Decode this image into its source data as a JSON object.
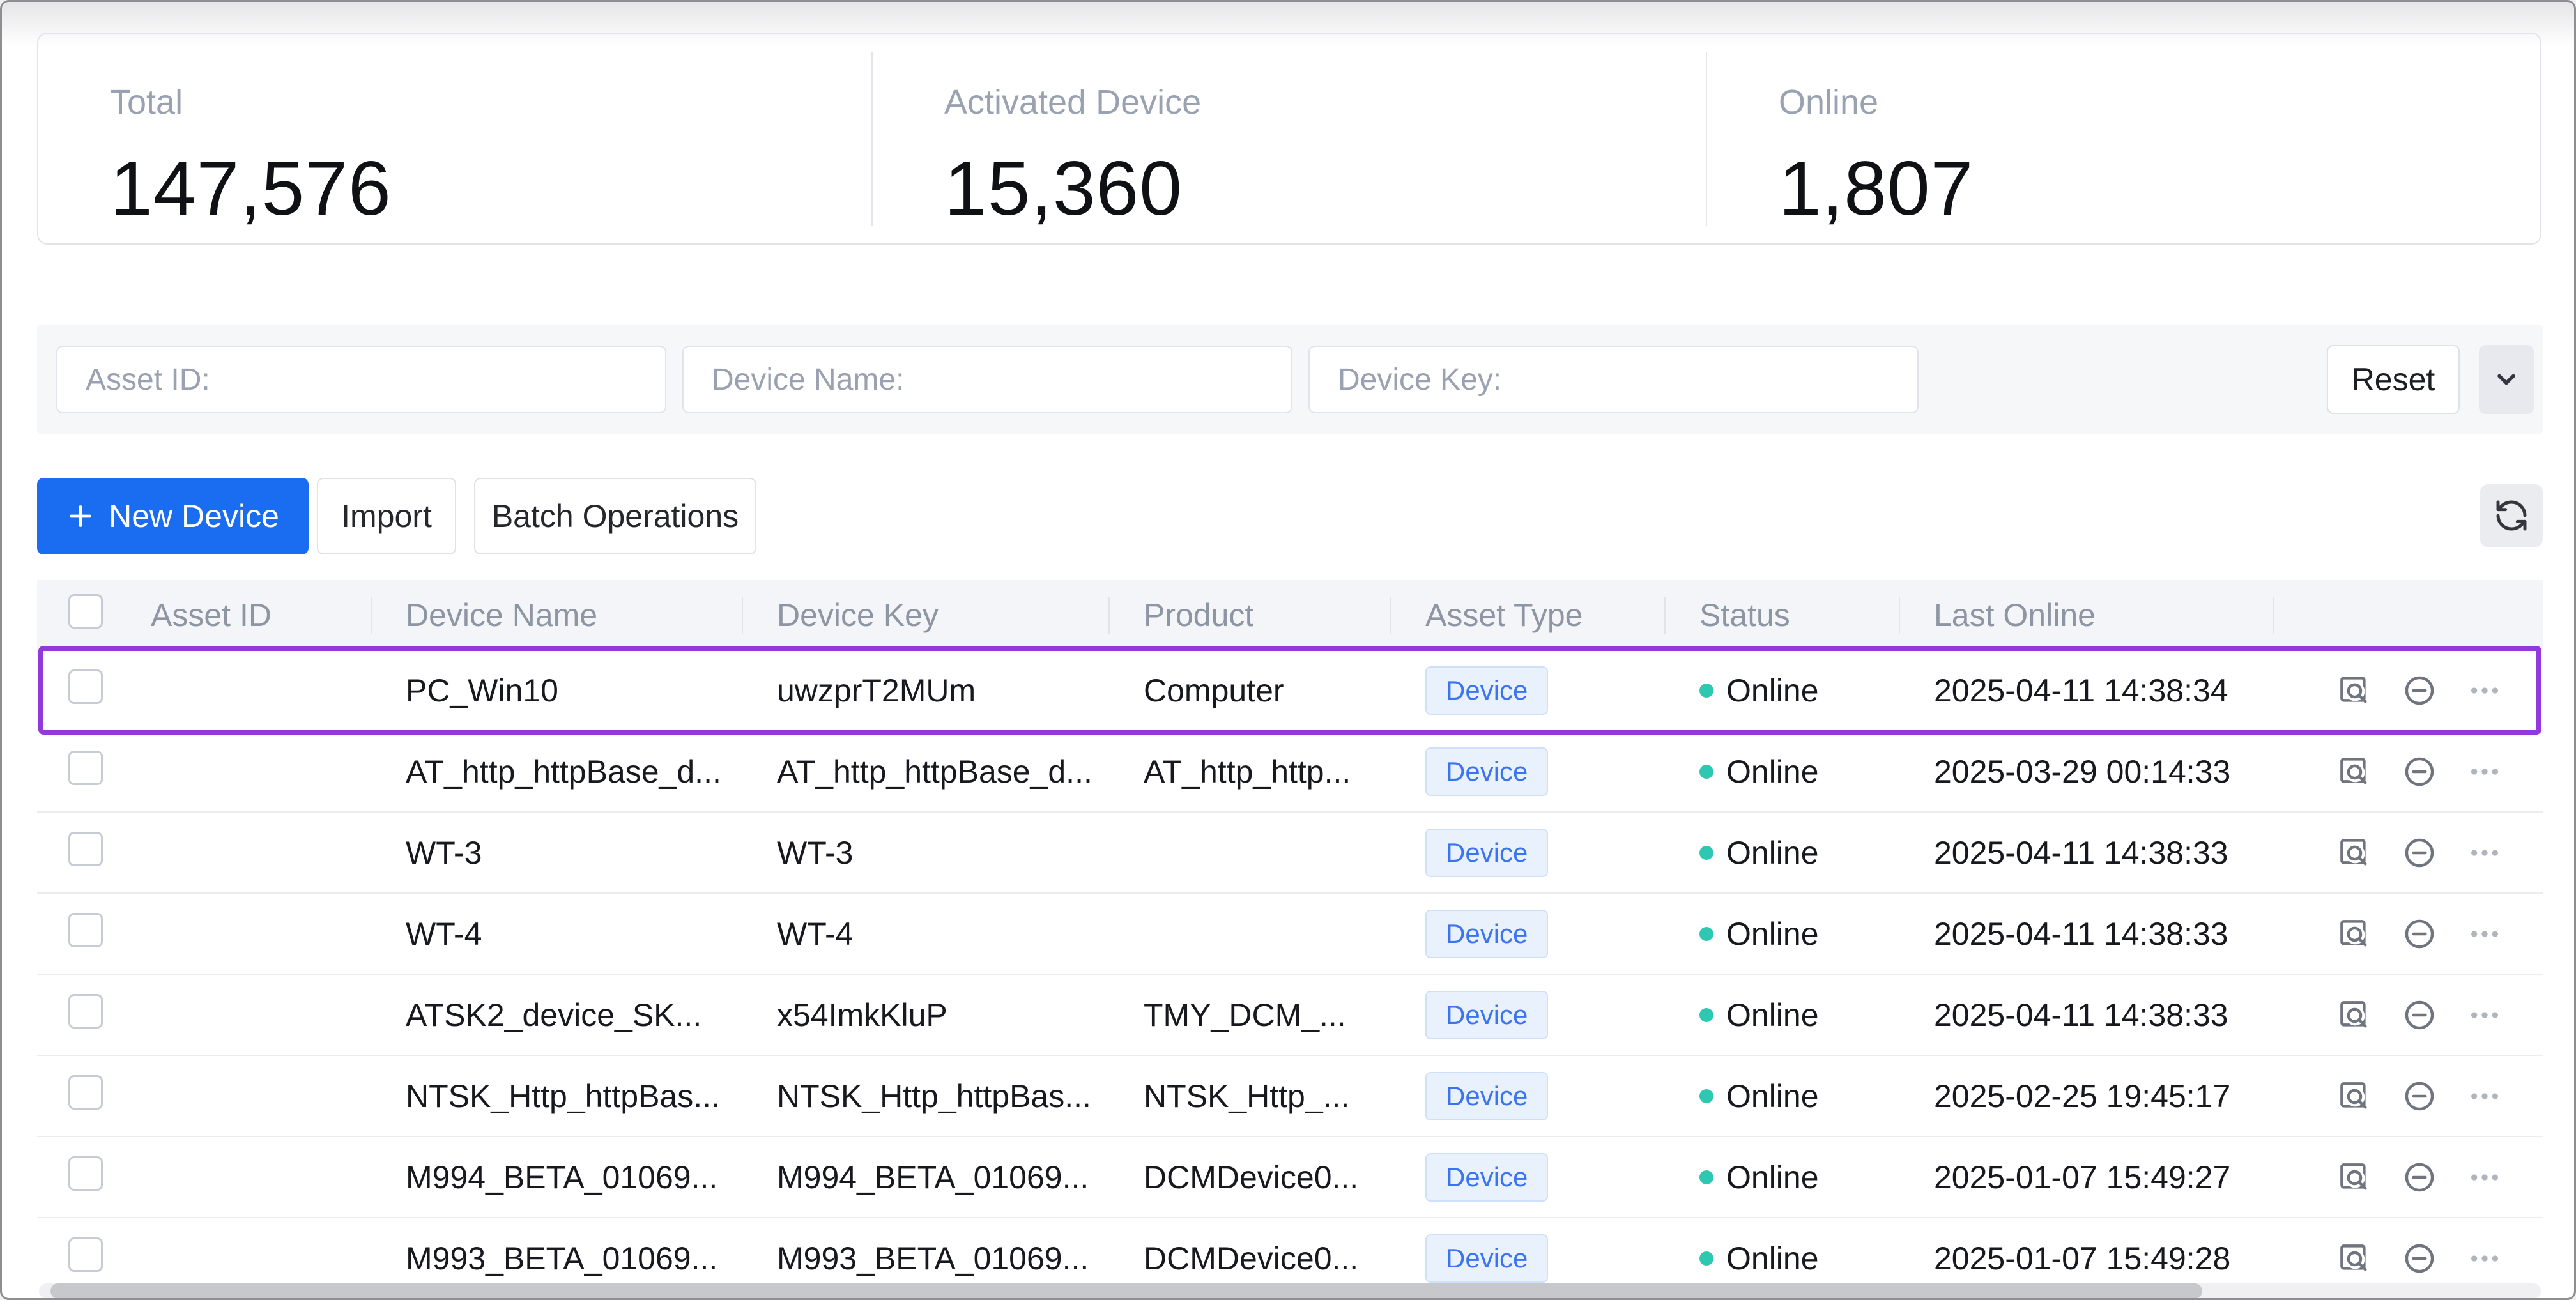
{
  "stats": [
    {
      "label": "Total",
      "value": "147,576"
    },
    {
      "label": "Activated Device",
      "value": "15,360"
    },
    {
      "label": "Online",
      "value": "1,807"
    }
  ],
  "filters": {
    "asset_id_placeholder": "Asset ID:",
    "device_name_placeholder": "Device Name:",
    "device_key_placeholder": "Device Key:",
    "reset_label": "Reset"
  },
  "toolbar": {
    "new_device_label": "New Device",
    "import_label": "Import",
    "batch_operations_label": "Batch Operations"
  },
  "table": {
    "columns": [
      "",
      "Asset ID",
      "Device Name",
      "Device Key",
      "Product",
      "Asset Type",
      "Status",
      "Last Online",
      ""
    ],
    "rows": [
      {
        "asset_id_redacted": true,
        "device_name": "PC_Win10",
        "device_key": "uwzprT2MUm",
        "product": "Computer",
        "product_redacted": false,
        "asset_type": "Device",
        "status": "Online",
        "last_online": "2025-04-11 14:38:34",
        "highlighted": true
      },
      {
        "asset_id_redacted": true,
        "device_name": "AT_http_httpBase_d...",
        "device_key": "AT_http_httpBase_d...",
        "product": "AT_http_http...",
        "product_redacted": false,
        "asset_type": "Device",
        "status": "Online",
        "last_online": "2025-03-29 00:14:33",
        "highlighted": false
      },
      {
        "asset_id_redacted": true,
        "device_name": "WT-3",
        "device_key": "WT-3",
        "product": "",
        "product_redacted": true,
        "asset_type": "Device",
        "status": "Online",
        "last_online": "2025-04-11 14:38:33",
        "highlighted": false
      },
      {
        "asset_id_redacted": true,
        "device_name": "WT-4",
        "device_key": "WT-4",
        "product": "",
        "product_redacted": true,
        "asset_type": "Device",
        "status": "Online",
        "last_online": "2025-04-11 14:38:33",
        "highlighted": false
      },
      {
        "asset_id_redacted": true,
        "device_name": "ATSK2_device_SK...",
        "device_key": "x54ImkKluP",
        "product": "TMY_DCM_...",
        "product_redacted": false,
        "asset_type": "Device",
        "status": "Online",
        "last_online": "2025-04-11 14:38:33",
        "highlighted": false
      },
      {
        "asset_id_redacted": true,
        "device_name": "NTSK_Http_httpBas...",
        "device_key": "NTSK_Http_httpBas...",
        "product": "NTSK_Http_...",
        "product_redacted": false,
        "asset_type": "Device",
        "status": "Online",
        "last_online": "2025-02-25 19:45:17",
        "highlighted": false
      },
      {
        "asset_id_redacted": true,
        "device_name": "M994_BETA_01069...",
        "device_key": "M994_BETA_01069...",
        "product": "DCMDevice0...",
        "product_redacted": false,
        "asset_type": "Device",
        "status": "Online",
        "last_online": "2025-01-07 15:49:27",
        "highlighted": false
      },
      {
        "asset_id_redacted": true,
        "device_name": "M993_BETA_01069...",
        "device_key": "M993_BETA_01069...",
        "product": "DCMDevice0...",
        "product_redacted": false,
        "asset_type": "Device",
        "status": "Online",
        "last_online": "2025-01-07 15:49:28",
        "highlighted": false
      }
    ]
  },
  "colors": {
    "accent_blue": "#1a6cf0",
    "badge_bg": "#e9f1fd",
    "badge_text": "#3a74f2",
    "badge_border": "#cfe0fb",
    "status_online": "#2dc8b2",
    "highlight_purple": "#9238dc"
  }
}
